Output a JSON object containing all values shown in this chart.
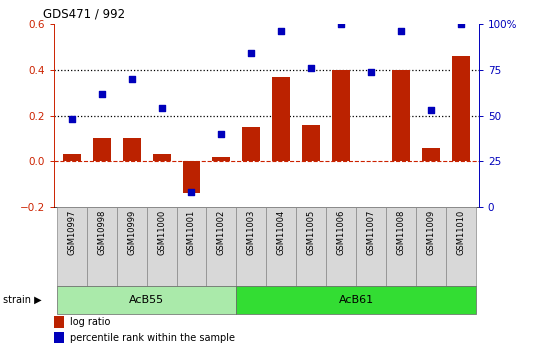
{
  "title": "GDS471 / 992",
  "samples": [
    "GSM10997",
    "GSM10998",
    "GSM10999",
    "GSM11000",
    "GSM11001",
    "GSM11002",
    "GSM11003",
    "GSM11004",
    "GSM11005",
    "GSM11006",
    "GSM11007",
    "GSM11008",
    "GSM11009",
    "GSM11010"
  ],
  "log_ratio": [
    0.03,
    0.1,
    0.1,
    0.03,
    -0.14,
    0.02,
    0.15,
    0.37,
    0.16,
    0.4,
    0.0,
    0.4,
    0.06,
    0.46
  ],
  "percentile": [
    48,
    62,
    70,
    54,
    8,
    40,
    84,
    96,
    76,
    100,
    74,
    96,
    53,
    100
  ],
  "strains": [
    {
      "label": "AcB55",
      "start": 0,
      "end": 6,
      "color": "#aaeaaa"
    },
    {
      "label": "AcB61",
      "start": 6,
      "end": 14,
      "color": "#33dd33"
    }
  ],
  "bar_color": "#bb2200",
  "dot_color": "#0000bb",
  "left_ylim": [
    -0.2,
    0.6
  ],
  "right_ylim": [
    0,
    100
  ],
  "left_yticks": [
    -0.2,
    0.0,
    0.2,
    0.4,
    0.6
  ],
  "right_yticks": [
    0,
    25,
    50,
    75,
    100
  ],
  "hlines": [
    0.2,
    0.4
  ],
  "zero_line_color": "#cc2200",
  "left_tick_color": "#cc2200",
  "right_tick_color": "#0000bb",
  "legend_bar_label": "log ratio",
  "legend_dot_label": "percentile rank within the sample",
  "strain_label": "strain",
  "bg_color": "#d8d8d8"
}
